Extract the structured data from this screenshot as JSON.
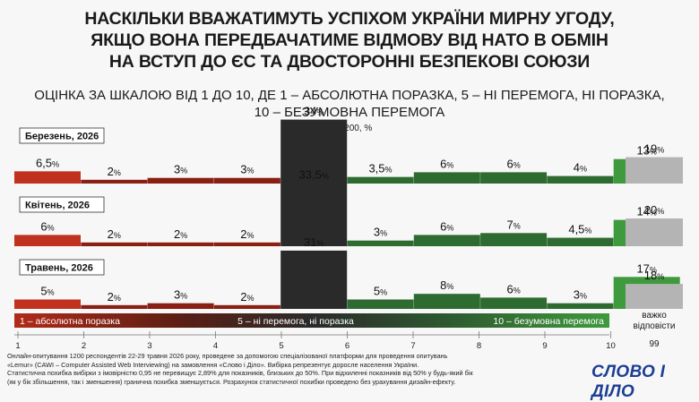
{
  "title_lines": [
    "НАСКІЛЬКИ ВВАЖАТИМУТЬ УСПІХОМ УКРАЇНИ МИРНУ УГОДУ,",
    "ЯКЩО ВОНА ПЕРЕДБАЧАТИМЕ ВІДМОВУ ВІД НАТО В ОБМІН",
    "НА ВСТУП ДО ЄС ТА ДВОСТОРОННІ БЕЗПЕКОВІ СОЮЗИ"
  ],
  "subtitle_lines": [
    "ОЦІНКА ЗА ШКАЛОЮ ВІД 1 ДО 10, ДЕ 1 – АБСОЛЮТНА ПОРАЗКА, 5 – НІ ПЕРЕМОГА, НІ ПОРАЗКА,",
    "10 – БЕЗУМОВНА ПЕРЕМОГА"
  ],
  "note": "N = 1200, %",
  "scale_labels": {
    "left": "1 – абсолютна поразка",
    "center": "5 – ні перемога, ні поразка",
    "right": "10 – безумовна перемога"
  },
  "hard_to_say": "важко відповісти",
  "hard_to_say_code": "99",
  "footer_lines": [
    "Онлайн-опитування 1200 респондентів 22-29 травня 2026 року, проведене за допомогою спеціалізованої платформи для проведення опитувань",
    "«Lemur» (CAWI – Computer Assisted Web Interviewing) на замовлення «Слово і Діло». Вибірка репрезентує доросле населення України.",
    "Статистична похибка вибірки з імовірністю 0,95 не перевищує 2,89% для показників, близьких до 50%. При відхиленні показників від 50% у будь-який бік",
    "(як у бік збільшення, так і зменшення) гранична похибка зменшується. Розрахунок статистичної похибки проведено без урахування дизайн-ефекту."
  ],
  "logo": "СЛОВО І ДІЛО",
  "colors": {
    "dark_red": "#8a1f14",
    "red": "#c0311e",
    "center": "#2a2a2a",
    "dark_green": "#2e6b30",
    "green": "#3f9a3d",
    "gray": "#b4b4b4"
  },
  "chart_data": {
    "type": "bar",
    "categories": [
      "1",
      "2",
      "3",
      "4",
      "5",
      "6",
      "7",
      "8",
      "9",
      "10",
      "99"
    ],
    "panels": [
      {
        "name": "Березень, 2026",
        "values": [
          6.5,
          2,
          3,
          3,
          34,
          3.5,
          6,
          6,
          4,
          13,
          19
        ],
        "labels": [
          "6,5",
          "2",
          "3",
          "3",
          "34",
          "3,5",
          "6",
          "6",
          "4",
          "13",
          "19"
        ]
      },
      {
        "name": "Квітень, 2026",
        "values": [
          6,
          2,
          2,
          2,
          33.5,
          3,
          6,
          7,
          4.5,
          14,
          20
        ],
        "labels": [
          "6",
          "2",
          "2",
          "2",
          "33,5",
          "3",
          "6",
          "7",
          "4,5",
          "14",
          "20"
        ]
      },
      {
        "name": "Травень, 2026",
        "values": [
          5,
          2,
          3,
          2,
          31,
          5,
          8,
          6,
          3,
          17,
          18
        ],
        "labels": [
          "5",
          "2",
          "3",
          "2",
          "31",
          "5",
          "8",
          "6",
          "3",
          "17",
          "18"
        ]
      }
    ],
    "unit": "%"
  }
}
